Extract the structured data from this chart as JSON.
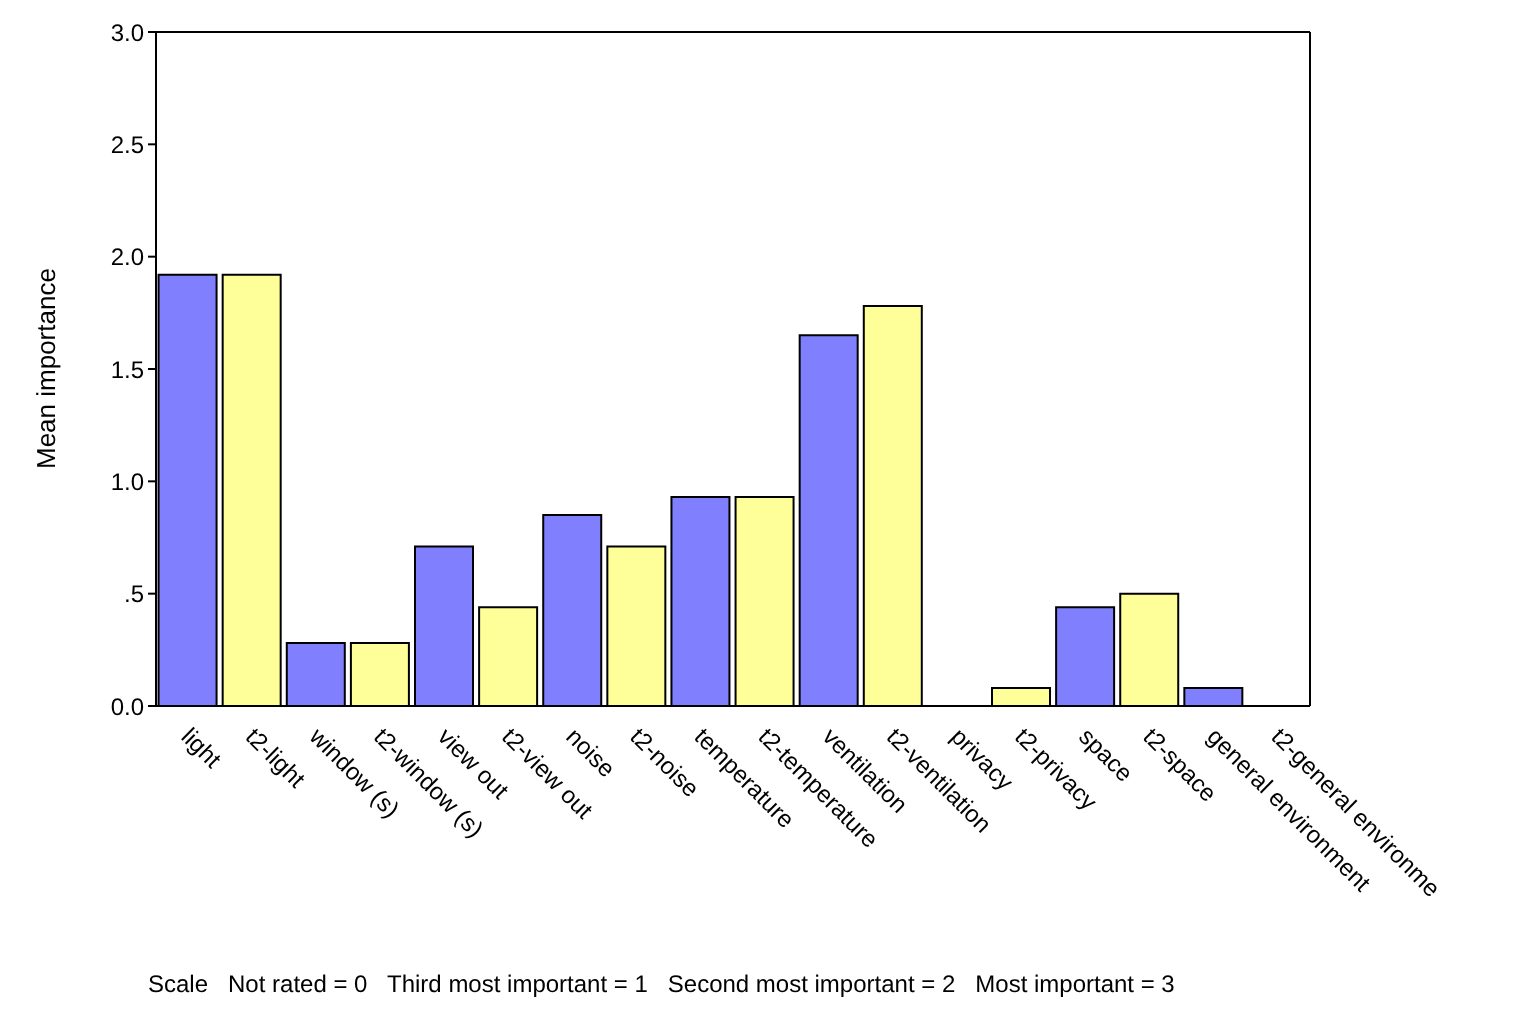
{
  "chart_data": {
    "type": "bar",
    "ylabel": "Mean importance",
    "categories": [
      "light",
      "t2-light",
      "window (s)",
      "t2-window (s)",
      "view out",
      "t2-view out",
      "noise",
      "t2-noise",
      "temperature",
      "t2-temperature",
      "ventilation",
      "t2-ventilation",
      "privacy",
      "t2-privacy",
      "space",
      "t2-space",
      "general environment",
      "t2-general environme"
    ],
    "values": [
      1.92,
      1.92,
      0.28,
      0.28,
      0.71,
      0.44,
      0.85,
      0.71,
      0.93,
      0.93,
      1.65,
      1.78,
      0,
      0.08,
      0.44,
      0.5,
      0.08,
      0
    ],
    "colors": [
      "#8080ff",
      "#ffff99",
      "#8080ff",
      "#ffff99",
      "#8080ff",
      "#ffff99",
      "#8080ff",
      "#ffff99",
      "#8080ff",
      "#ffff99",
      "#8080ff",
      "#ffff99",
      "#8080ff",
      "#ffff99",
      "#8080ff",
      "#ffff99",
      "#8080ff",
      "#ffff99"
    ],
    "ylim": [
      0,
      3
    ],
    "yticks": [
      {
        "value": 0,
        "label": "0.0"
      },
      {
        "value": 0.5,
        "label": ".5"
      },
      {
        "value": 1,
        "label": "1.0"
      },
      {
        "value": 1.5,
        "label": "1.5"
      },
      {
        "value": 2,
        "label": "2.0"
      },
      {
        "value": 2.5,
        "label": "2.5"
      },
      {
        "value": 3,
        "label": "3.0"
      }
    ],
    "grid": false,
    "legend": false,
    "annotations": [
      "Scale   Not rated = 0   Third most important = 1   Second most important = 2   Most important = 3"
    ]
  }
}
